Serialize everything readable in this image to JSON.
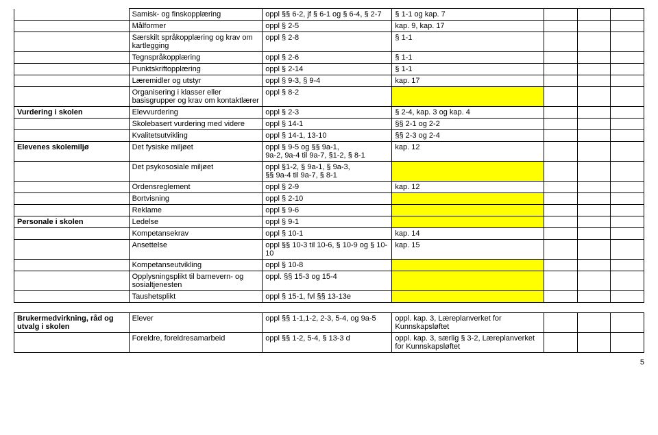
{
  "colors": {
    "highlight": "#ffff00",
    "background": "#ffffff",
    "border": "#000000"
  },
  "font": {
    "family": "Arial, sans-serif",
    "size_pt": 11
  },
  "footer": "5",
  "sections": [
    {
      "label": "",
      "rows": [
        {
          "a": "Samisk- og finskopplæring",
          "b": "oppl §§ 6-2, jf § 6-1 og § 6-4, § 2-7",
          "c": "§ 1-1 og kap. 7"
        },
        {
          "a": "Målformer",
          "b": "oppl § 2-5",
          "c": "kap. 9, kap. 17"
        },
        {
          "a": "Særskilt språkopplæring og krav om kartlegging",
          "b": "oppl § 2-8",
          "c": "§ 1-1"
        },
        {
          "a": "Tegnspråkopplæring",
          "b": "oppl § 2-6",
          "c": "§ 1-1"
        },
        {
          "a": "Punktskriftopplæring",
          "b": "oppl § 2-14",
          "c": "§ 1-1"
        },
        {
          "a": "Læremidler og utstyr",
          "b": "oppl § 9-3, § 9-4",
          "c": "kap. 17"
        },
        {
          "a": "Organisering i klasser eller basisgrupper og krav om kontaktlærer",
          "b": "oppl § 8-2",
          "c": "",
          "hl": true
        }
      ]
    },
    {
      "label": "Vurdering i skolen",
      "rows": [
        {
          "a": "Elevvurdering",
          "b": "oppl § 2-3",
          "c": "§ 2-4, kap. 3 og kap. 4"
        },
        {
          "a": "Skolebasert vurdering med videre",
          "b": "oppl § 14-1",
          "c": "§§ 2-1 og 2-2"
        },
        {
          "a": "Kvalitetsutvikling",
          "b": "oppl § 14-1, 13-10",
          "c": "§§ 2-3 og 2-4"
        }
      ]
    },
    {
      "label": "Elevenes skolemiljø",
      "rows": [
        {
          "a": "Det fysiske miljøet",
          "b": "oppl § 9-5 og §§ 9a-1,\n9a-2, 9a-4 til 9a-7, §1-2, § 8-1",
          "c": "kap. 12"
        },
        {
          "a": "Det psykososiale miljøet",
          "b": "oppl §1-2, § 9a-1, § 9a-3,\n§§ 9a-4 til 9a-7, § 8-1",
          "c": "",
          "hl": true
        },
        {
          "a": "Ordensreglement",
          "b": "oppl § 2-9",
          "c": "kap. 12"
        },
        {
          "a": "Bortvisning",
          "b": "oppl § 2-10",
          "c": "",
          "hl": true
        },
        {
          "a": "Reklame",
          "b": "oppl § 9-6",
          "c": "",
          "hl": true
        }
      ]
    },
    {
      "label": "Personale i skolen",
      "rows": [
        {
          "a": "Ledelse",
          "b": "oppl § 9-1",
          "c": "",
          "hl": true
        },
        {
          "a": "Kompetansekrav",
          "b": "oppl § 10-1",
          "c": "kap. 14"
        },
        {
          "a": "Ansettelse",
          "b": "oppl §§ 10-3 til 10-6, § 10-9 og § 10-10",
          "c": "kap. 15"
        },
        {
          "a": "Kompetanseutvikling",
          "b": "oppl § 10-8",
          "c": "",
          "hl": true
        },
        {
          "a": "Opplysningsplikt til barnevern- og sosialtjenesten",
          "b": "oppl. §§ 15-3 og 15-4",
          "c": "",
          "hl": true
        },
        {
          "a": "Taushetsplikt",
          "b": "oppl § 15-1, fvl §§ 13-13e",
          "c": "",
          "hl": true
        }
      ]
    }
  ],
  "block2": {
    "label": "Brukermedvirkning, råd og utvalg i skolen",
    "rows": [
      {
        "a": "Elever",
        "b": "oppl §§ 1-1,1-2, 2-3, 5-4, og 9a-5",
        "c": "oppl. kap. 3, Læreplanverket for Kunnskapsløftet"
      },
      {
        "a": "Foreldre, foreldresamarbeid",
        "b": "oppl §§ 1-2, 5-4, § 13-3 d",
        "c": "oppl. kap. 3, særlig § 3-2, Læreplanverket for Kunnskapsløftet"
      }
    ]
  }
}
